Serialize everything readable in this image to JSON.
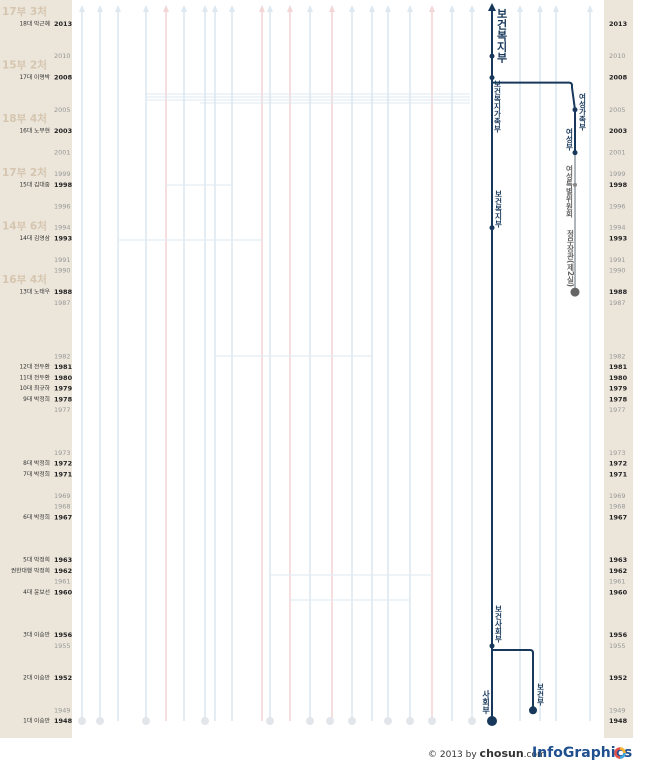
{
  "timeline": {
    "years": [
      2013,
      2010,
      2008,
      2005,
      2003,
      2001,
      1999,
      1998,
      1996,
      1994,
      1993,
      1991,
      1990,
      1988,
      1987,
      1982,
      1981,
      1980,
      1979,
      1978,
      1977,
      1973,
      1972,
      1971,
      1969,
      1968,
      1967,
      1963,
      1962,
      1961,
      1960,
      1956,
      1955,
      1952,
      1949,
      1948
    ],
    "presidents": [
      {
        "year": 2013,
        "name": "18대 박근혜"
      },
      {
        "year": 2008,
        "name": "17대 이명박"
      },
      {
        "year": 2003,
        "name": "16대 노무현"
      },
      {
        "year": 1998,
        "name": "15대 김대중"
      },
      {
        "year": 1993,
        "name": "14대 김영삼"
      },
      {
        "year": 1988,
        "name": "13대 노태우"
      },
      {
        "year": 1981,
        "name": "12대 전두환"
      },
      {
        "year": 1980,
        "name": "11대 전두환"
      },
      {
        "year": 1979,
        "name": "10대 최규하"
      },
      {
        "year": 1978,
        "name": "9대 박정희"
      },
      {
        "year": 1972,
        "name": "8대 박정희"
      },
      {
        "year": 1971,
        "name": "7대 박정희"
      },
      {
        "year": 1967,
        "name": "6대 박정희"
      },
      {
        "year": 1963,
        "name": "5대 박정희"
      },
      {
        "year": 1962,
        "name": "권한대행 박정희"
      },
      {
        "year": 1960,
        "name": "4대 윤보선"
      },
      {
        "year": 1956,
        "name": "3대 이승만"
      },
      {
        "year": 1952,
        "name": "2대 이승만"
      },
      {
        "year": 1948,
        "name": "1대 이승만"
      }
    ],
    "cabinets": [
      {
        "year": 2013,
        "label": "17부 3처"
      },
      {
        "year": 2008,
        "label": "15부 2처"
      },
      {
        "year": 2003,
        "label": "18부 4처"
      },
      {
        "year": 1998,
        "label": "17부 2처"
      },
      {
        "year": 1993,
        "label": "14부 6처"
      },
      {
        "year": 1988,
        "label": "16부 4처"
      }
    ]
  },
  "nodes": [
    {
      "label": "사회부",
      "year": 1948
    },
    {
      "label": "보건부",
      "year": 1949
    },
    {
      "label": "보건사회부",
      "year": 1955
    },
    {
      "label": "보건복지부",
      "year": 1994
    },
    {
      "label": "정무장관(제2실)",
      "year": 1988
    },
    {
      "label": "여성특별위원회",
      "year": 1998
    },
    {
      "label": "여성부",
      "year": 2001
    },
    {
      "label": "여성가족부",
      "year": 2005
    },
    {
      "label": "보건복지가족부",
      "year": 2008
    },
    {
      "label": "보건복지부",
      "year": 2010
    }
  ],
  "footer": {
    "prefix": "© 2013 by",
    "brand": "chosun",
    "suffix": ".com",
    "logo": "InfoGraphics"
  }
}
